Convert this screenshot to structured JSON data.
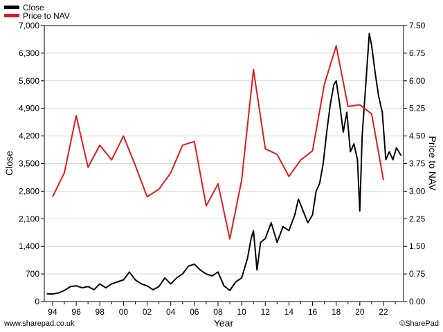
{
  "footer": {
    "left": "www.sharepad.co.uk",
    "right": "©SharePad"
  },
  "colors": {
    "close": "#000000",
    "price_to_nav": "#e31a1c",
    "grid": "#d9d9d9",
    "axis": "#000000"
  },
  "chart_data": {
    "type": "line",
    "xlabel": "Year",
    "ylabel_left": "Close",
    "ylabel_right": "Price to NAV",
    "x_ticks": [
      "94",
      "96",
      "98",
      "00",
      "02",
      "04",
      "06",
      "08",
      "10",
      "12",
      "14",
      "16",
      "18",
      "20",
      "22"
    ],
    "x_range": [
      1993.3,
      2023.7
    ],
    "ylim_left": [
      0,
      7000
    ],
    "yticks_left": [
      "0",
      "700",
      "1,400",
      "2,100",
      "2,800",
      "3,500",
      "4,200",
      "4,900",
      "5,600",
      "6,300",
      "7,000"
    ],
    "ylim_right": [
      0,
      7.5
    ],
    "yticks_right": [
      "0.00",
      "0.75",
      "1.50",
      "2.25",
      "3.00",
      "3.75",
      "4.50",
      "5.25",
      "6.00",
      "6.75",
      "7.50"
    ],
    "grid": true,
    "legend": "top-left",
    "series": [
      {
        "name": "Close",
        "axis": "left",
        "x": [
          1993.5,
          1994.0,
          1994.5,
          1995.0,
          1995.5,
          1996.0,
          1996.5,
          1997.0,
          1997.5,
          1998.0,
          1998.5,
          1999.0,
          1999.5,
          2000.0,
          2000.5,
          2001.0,
          2001.5,
          2002.0,
          2002.5,
          2003.0,
          2003.5,
          2004.0,
          2004.5,
          2005.0,
          2005.5,
          2006.0,
          2006.5,
          2007.0,
          2007.5,
          2008.0,
          2008.5,
          2009.0,
          2009.5,
          2010.0,
          2010.5,
          2010.8,
          2011.0,
          2011.3,
          2011.6,
          2012.0,
          2012.5,
          2013.0,
          2013.5,
          2014.0,
          2014.5,
          2014.8,
          2015.2,
          2015.6,
          2016.0,
          2016.3,
          2016.6,
          2016.9,
          2017.2,
          2017.5,
          2017.8,
          2018.0,
          2018.3,
          2018.6,
          2018.9,
          2019.2,
          2019.5,
          2019.8,
          2020.0,
          2020.2,
          2020.5,
          2020.8,
          2021.0,
          2021.3,
          2021.6,
          2021.9,
          2022.2,
          2022.5,
          2022.8,
          2023.1,
          2023.5
        ],
        "values": [
          200,
          190,
          220,
          280,
          380,
          400,
          350,
          380,
          300,
          450,
          350,
          450,
          500,
          550,
          750,
          550,
          450,
          400,
          300,
          380,
          600,
          450,
          600,
          700,
          900,
          950,
          800,
          700,
          650,
          750,
          400,
          280,
          500,
          600,
          1100,
          1600,
          1800,
          800,
          1500,
          1600,
          2000,
          1500,
          1900,
          1800,
          2200,
          2600,
          2300,
          2000,
          2200,
          2800,
          3000,
          3500,
          4300,
          5000,
          5500,
          5600,
          5000,
          4300,
          4800,
          3800,
          4000,
          3600,
          2300,
          4200,
          5500,
          6800,
          6500,
          5800,
          5200,
          4800,
          3600,
          3800,
          3600,
          3900,
          3700
        ]
      },
      {
        "name": "Price to NAV",
        "axis": "right",
        "x": [
          1994,
          1995,
          1996,
          1997,
          1998,
          1999,
          2000,
          2001,
          2002,
          2003,
          2004,
          2005,
          2006,
          2007,
          2008,
          2009,
          2010,
          2011,
          2012,
          2013,
          2014,
          2015,
          2016,
          2017,
          2018,
          2019,
          2020,
          2021,
          2022
        ],
        "values": [
          2.85,
          3.5,
          5.05,
          3.65,
          4.25,
          3.85,
          4.5,
          3.7,
          2.85,
          3.05,
          3.5,
          4.25,
          4.35,
          2.6,
          3.2,
          1.7,
          3.3,
          6.3,
          4.15,
          4.0,
          3.4,
          3.85,
          4.1,
          5.9,
          6.95,
          5.3,
          5.35,
          5.1,
          3.3
        ]
      }
    ]
  }
}
